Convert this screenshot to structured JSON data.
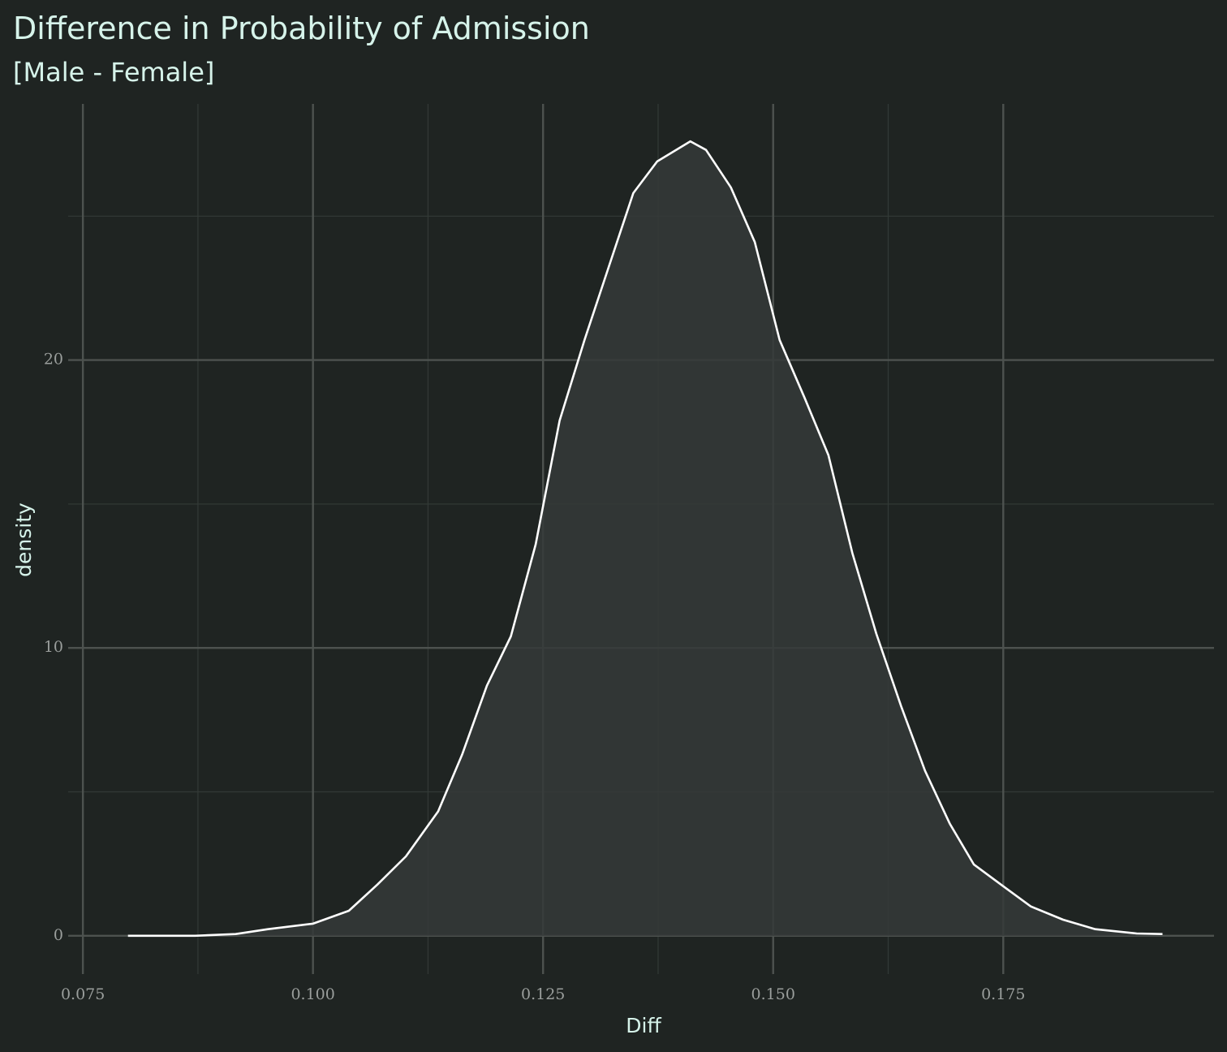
{
  "chart_data": {
    "type": "density",
    "title": "Difference in Probability of Admission",
    "subtitle": "[Male - Female]",
    "x_label": "Diff",
    "y_label": "density",
    "x": [
      0.0799,
      0.0872,
      0.0916,
      0.0951,
      0.1,
      0.1039,
      0.107,
      0.1101,
      0.1136,
      0.1162,
      0.1189,
      0.1215,
      0.1242,
      0.1268,
      0.1295,
      0.1321,
      0.1348,
      0.1374,
      0.141,
      0.1427,
      0.1454,
      0.148,
      0.1507,
      0.1534,
      0.156,
      0.1586,
      0.1612,
      0.1639,
      0.1665,
      0.1692,
      0.1718,
      0.175,
      0.178,
      0.1815,
      0.185,
      0.1895,
      0.1923
    ],
    "y": [
      0,
      0,
      0.06,
      0.23,
      0.42,
      0.87,
      1.78,
      2.76,
      4.32,
      6.29,
      8.69,
      10.4,
      13.6,
      17.9,
      20.7,
      23.2,
      25.8,
      26.9,
      27.6,
      27.3,
      26.0,
      24.1,
      20.7,
      18.7,
      16.7,
      13.3,
      10.5,
      7.98,
      5.73,
      3.89,
      2.48,
      1.72,
      1.02,
      0.56,
      0.23,
      0.08,
      0.06
    ],
    "line_color": "#ffffff",
    "fill_color": "#353a38",
    "xlim": [
      0.0734,
      0.1979
    ],
    "ylim": [
      -1.33,
      28.9
    ],
    "xticks": [
      0.075,
      {
        "value": 0.1,
        "label": "0.100"
      },
      0.125,
      {
        "value": 0.15,
        "label": "0.150"
      },
      0.175
    ],
    "yticks": [
      0,
      10,
      20
    ],
    "grid": true,
    "minor_grid": true
  }
}
